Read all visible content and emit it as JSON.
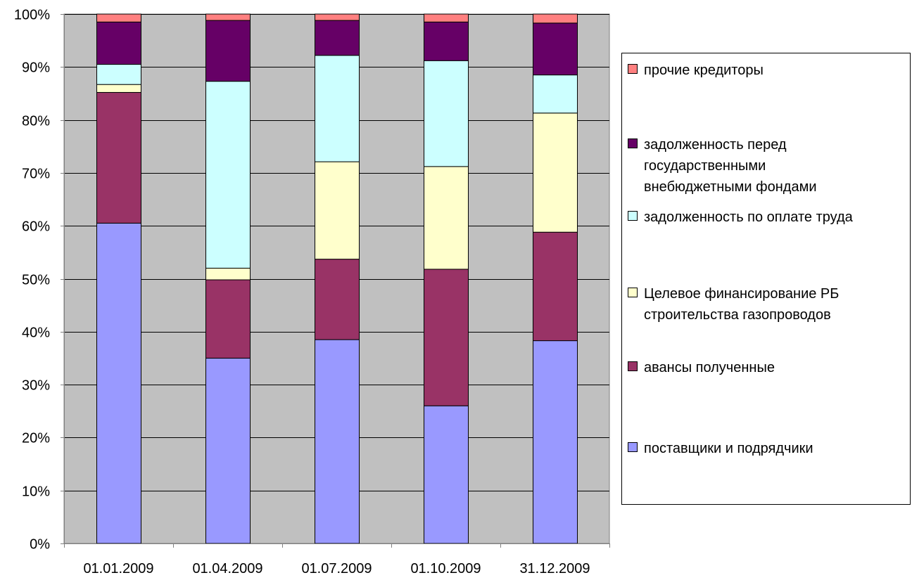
{
  "chart_data": {
    "type": "bar",
    "stacked": true,
    "percent_stacked": true,
    "categories": [
      "01.01.2009",
      "01.04.2009",
      "01.07.2009",
      "01.10.2009",
      "31.12.2009"
    ],
    "series": [
      {
        "name": "поставщики и подрядчики",
        "color": "#9999ff",
        "values": [
          60.5,
          35.0,
          38.5,
          26.0,
          38.3
        ]
      },
      {
        "name": "авансы полученные",
        "color": "#993366",
        "values": [
          24.7,
          14.8,
          15.2,
          25.8,
          20.5
        ]
      },
      {
        "name": "Целевое финансирование РБ строительства газопроводов",
        "legend_lines": [
          "Целевое финансирование РБ",
          "строительства газопроводов"
        ],
        "color": "#ffffcc",
        "values": [
          1.5,
          2.2,
          18.4,
          19.4,
          22.5
        ]
      },
      {
        "name": "задолженность по оплате труда",
        "color": "#ccffff",
        "values": [
          3.8,
          35.3,
          20.1,
          20.0,
          7.2
        ]
      },
      {
        "name": "задолженность перед государственными внебюджетными фондами",
        "legend_lines": [
          "задолженность перед",
          "государственными",
          "внебюджетными фондами"
        ],
        "color": "#660066",
        "values": [
          8.0,
          11.5,
          6.6,
          7.3,
          9.8
        ]
      },
      {
        "name": "прочие кредиторы",
        "color": "#ff8080",
        "values": [
          1.5,
          1.2,
          1.2,
          1.5,
          1.7
        ]
      }
    ],
    "y_ticks": [
      "0%",
      "10%",
      "20%",
      "30%",
      "40%",
      "50%",
      "60%",
      "70%",
      "80%",
      "90%",
      "100%"
    ],
    "ylim": [
      0,
      100
    ],
    "grid": true,
    "legend_position": "right",
    "legend_order": "reverse",
    "plot_background": "#c0c0c0"
  }
}
